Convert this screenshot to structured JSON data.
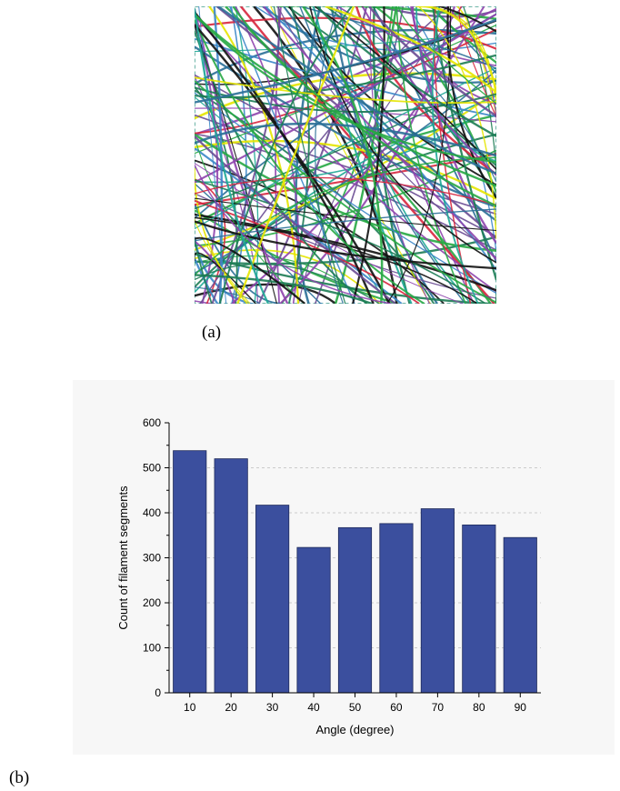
{
  "captions": {
    "a": "(a)",
    "b": "(b)"
  },
  "fiber_image": {
    "colors": [
      "#d7263d",
      "#1c7c54",
      "#2a6f97",
      "#6a4c93",
      "#111111",
      "#e6e600",
      "#1ea896",
      "#3a86c8",
      "#8e44ad",
      "#27a844"
    ]
  },
  "chart_data": {
    "type": "bar",
    "categories": [
      "10",
      "20",
      "30",
      "40",
      "50",
      "60",
      "70",
      "80",
      "90"
    ],
    "values": [
      538,
      520,
      417,
      323,
      367,
      376,
      409,
      373,
      345
    ],
    "xlabel": "Angle (degree)",
    "ylabel": "Count of filament segments",
    "ylim": [
      0,
      600
    ],
    "yticks": [
      "0",
      "100",
      "200",
      "300",
      "400",
      "500",
      "600"
    ],
    "grid": true,
    "bar_color": "#3b4f9e"
  }
}
